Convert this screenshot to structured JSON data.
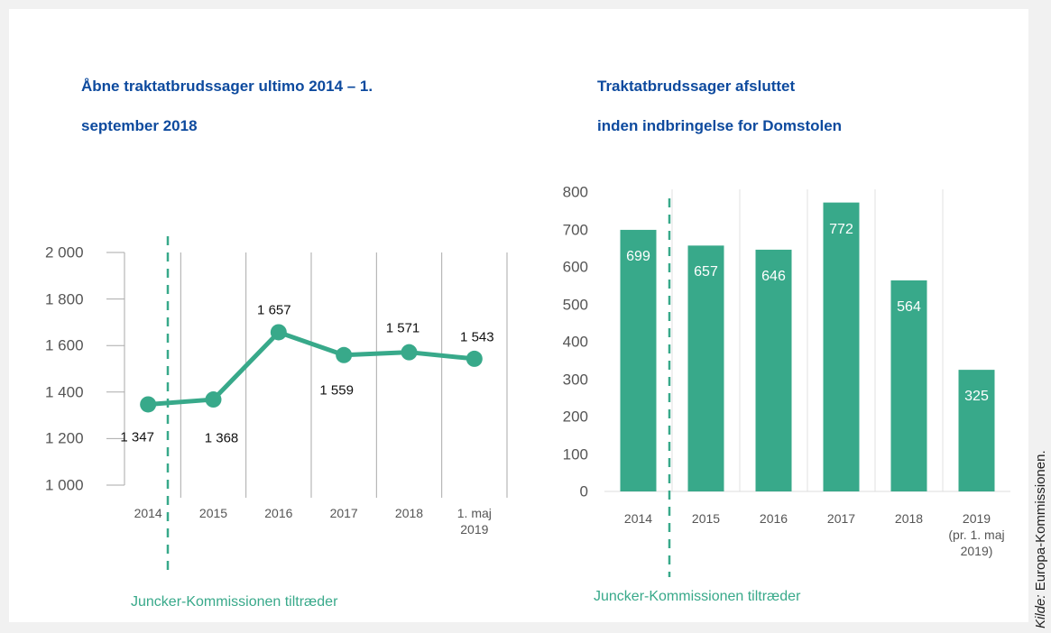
{
  "chart_data": [
    {
      "type": "line",
      "title": "Åbne traktatbrudssager ultimo 2014 – 1.\nseptember 2018",
      "categories": [
        "2014",
        "2015",
        "2016",
        "2017",
        "2018",
        "1. maj\n2019"
      ],
      "values": [
        1347,
        1368,
        1657,
        1559,
        1571,
        1543
      ],
      "value_labels": [
        "1 347",
        "1 368",
        "1 657",
        "1 559",
        "1 571",
        "1 543"
      ],
      "color": "#38a98a",
      "ylim": [
        1000,
        2000
      ],
      "yticks": [
        {
          "value": 1000,
          "label": "1 000"
        },
        {
          "value": 1200,
          "label": "1 200"
        },
        {
          "value": 1400,
          "label": "1 400"
        },
        {
          "value": 1600,
          "label": "1 600"
        },
        {
          "value": 1800,
          "label": "1 800"
        },
        {
          "value": 2000,
          "label": "2 000"
        }
      ],
      "annotation": "Juncker-Kommissionen tiltræder"
    },
    {
      "type": "bar",
      "title": "Traktatbrudssager afsluttet\ninden indbringelse for Domstolen",
      "categories": [
        "2014",
        "2015",
        "2016",
        "2017",
        "2018",
        "2019\n(pr. 1. maj\n2019)"
      ],
      "values": [
        699,
        657,
        646,
        772,
        564,
        325
      ],
      "color": "#38a98a",
      "ylim": [
        0,
        800
      ],
      "yticks": [
        0,
        100,
        200,
        300,
        400,
        500,
        600,
        700,
        800
      ],
      "annotation": "Juncker-Kommissionen tiltræder"
    }
  ],
  "source": {
    "prefix": "Kilde:",
    "text": "Europa-Kommissionen."
  }
}
